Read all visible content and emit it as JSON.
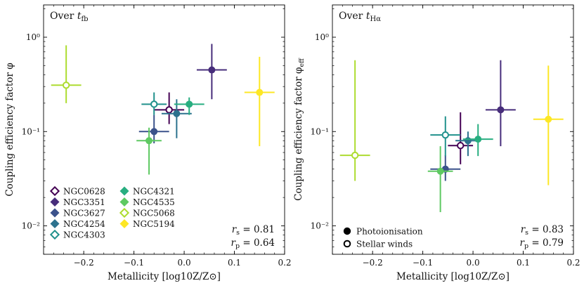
{
  "chart_data": [
    {
      "type": "scatter",
      "panel": "left",
      "title": "Over t_fb",
      "title_main": "Over ",
      "title_var": "t",
      "title_sub": "fb",
      "xlabel": "Metallicity [log10Z/Z⊙]",
      "ylabel": "Coupling efficiency factor φ",
      "xlim": [
        -0.28,
        0.2
      ],
      "ylim": [
        0.005,
        2.2
      ],
      "yscale": "log",
      "xticks": [
        -0.2,
        -0.1,
        0.0,
        0.1,
        0.2
      ],
      "xtick_labels": [
        "−0.2",
        "−0.1",
        "0.0",
        "0.1",
        "0.2"
      ],
      "yticks": [
        0.01,
        0.1,
        1
      ],
      "ytick_labels": [
        "10⁻²",
        "10⁻¹",
        "10⁰"
      ],
      "stats": {
        "rs": "= 0.81",
        "rp": "= 0.64"
      },
      "legend_position": "bottom-left",
      "series": [
        {
          "name": "NGC0628",
          "color": "#440154",
          "marker": "open",
          "x": -0.03,
          "xerr": 0.03,
          "y": 0.17,
          "ylo": 0.12,
          "yhi": 0.26
        },
        {
          "name": "NGC3351",
          "color": "#472d7b",
          "marker": "filled",
          "x": 0.055,
          "xerr": 0.03,
          "y": 0.45,
          "ylo": 0.22,
          "yhi": 0.85
        },
        {
          "name": "NGC3627",
          "color": "#3b528b",
          "marker": "filled",
          "x": -0.06,
          "xerr": 0.03,
          "y": 0.1,
          "ylo": 0.075,
          "yhi": 0.15
        },
        {
          "name": "NGC4254",
          "color": "#2c728e",
          "marker": "filled",
          "x": -0.015,
          "xerr": 0.03,
          "y": 0.155,
          "ylo": 0.085,
          "yhi": 0.22
        },
        {
          "name": "NGC4303",
          "color": "#21918c",
          "marker": "open",
          "x": -0.06,
          "xerr": 0.025,
          "y": 0.195,
          "ylo": 0.15,
          "yhi": 0.26
        },
        {
          "name": "NGC4321",
          "color": "#28ae80",
          "marker": "filled",
          "x": 0.01,
          "xerr": 0.03,
          "y": 0.195,
          "ylo": 0.15,
          "yhi": 0.23
        },
        {
          "name": "NGC4535",
          "color": "#5ec962",
          "marker": "filled",
          "x": -0.07,
          "xerr": 0.025,
          "y": 0.08,
          "ylo": 0.035,
          "yhi": 0.11
        },
        {
          "name": "NGC5068",
          "color": "#addc30",
          "marker": "open",
          "x": -0.235,
          "xerr": 0.03,
          "y": 0.31,
          "ylo": 0.2,
          "yhi": 0.82
        },
        {
          "name": "NGC5194",
          "color": "#fde725",
          "marker": "filled",
          "x": 0.15,
          "xerr": 0.03,
          "y": 0.26,
          "ylo": 0.07,
          "yhi": 0.62
        }
      ]
    },
    {
      "type": "scatter",
      "panel": "right",
      "title": "Over t_Hα",
      "title_main": "Over ",
      "title_var": "t",
      "title_sub": "Hα",
      "xlabel": "Metallicity [log10Z/Z⊙]",
      "ylabel": "Coupling efficiency factor φ_eff",
      "xlim": [
        -0.28,
        0.2
      ],
      "ylim": [
        0.005,
        2.2
      ],
      "yscale": "log",
      "xticks": [
        -0.2,
        -0.1,
        0.0,
        0.1,
        0.2
      ],
      "xtick_labels": [
        "−0.2",
        "−0.1",
        "0.0",
        "0.1",
        "0.2"
      ],
      "yticks": [
        0.01,
        0.1,
        1
      ],
      "ytick_labels": [
        "10⁻²",
        "10⁻¹",
        "10⁰"
      ],
      "stats": {
        "rs": "= 0.83",
        "rp": "= 0.79"
      },
      "marker_legend": [
        {
          "label": "Photoionisation",
          "marker": "filled"
        },
        {
          "label": "Stellar winds",
          "marker": "open"
        }
      ],
      "legend_position": "bottom-left",
      "series": [
        {
          "name": "NGC0628",
          "color": "#440154",
          "marker": "open",
          "x": -0.025,
          "xerr": 0.025,
          "y": 0.071,
          "ylo": 0.045,
          "yhi": 0.16
        },
        {
          "name": "NGC3351",
          "color": "#472d7b",
          "marker": "filled",
          "x": 0.055,
          "xerr": 0.03,
          "y": 0.17,
          "ylo": 0.07,
          "yhi": 0.57
        },
        {
          "name": "NGC3627",
          "color": "#3b528b",
          "marker": "filled",
          "x": -0.055,
          "xerr": 0.03,
          "y": 0.04,
          "ylo": 0.03,
          "yhi": 0.056
        },
        {
          "name": "NGC4254",
          "color": "#2c728e",
          "marker": "filled",
          "x": -0.01,
          "xerr": 0.025,
          "y": 0.08,
          "ylo": 0.055,
          "yhi": 0.1
        },
        {
          "name": "NGC4303",
          "color": "#21918c",
          "marker": "open",
          "x": -0.055,
          "xerr": 0.03,
          "y": 0.092,
          "ylo": 0.055,
          "yhi": 0.145
        },
        {
          "name": "NGC4321",
          "color": "#28ae80",
          "marker": "filled",
          "x": 0.01,
          "xerr": 0.03,
          "y": 0.083,
          "ylo": 0.055,
          "yhi": 0.12
        },
        {
          "name": "NGC4535",
          "color": "#5ec962",
          "marker": "filled",
          "x": -0.065,
          "xerr": 0.025,
          "y": 0.038,
          "ylo": 0.014,
          "yhi": 0.07
        },
        {
          "name": "NGC5068",
          "color": "#addc30",
          "marker": "open",
          "x": -0.235,
          "xerr": 0.03,
          "y": 0.056,
          "ylo": 0.03,
          "yhi": 0.57
        },
        {
          "name": "NGC5194",
          "color": "#fde725",
          "marker": "filled",
          "x": 0.15,
          "xerr": 0.03,
          "y": 0.135,
          "ylo": 0.027,
          "yhi": 0.5
        }
      ]
    }
  ]
}
